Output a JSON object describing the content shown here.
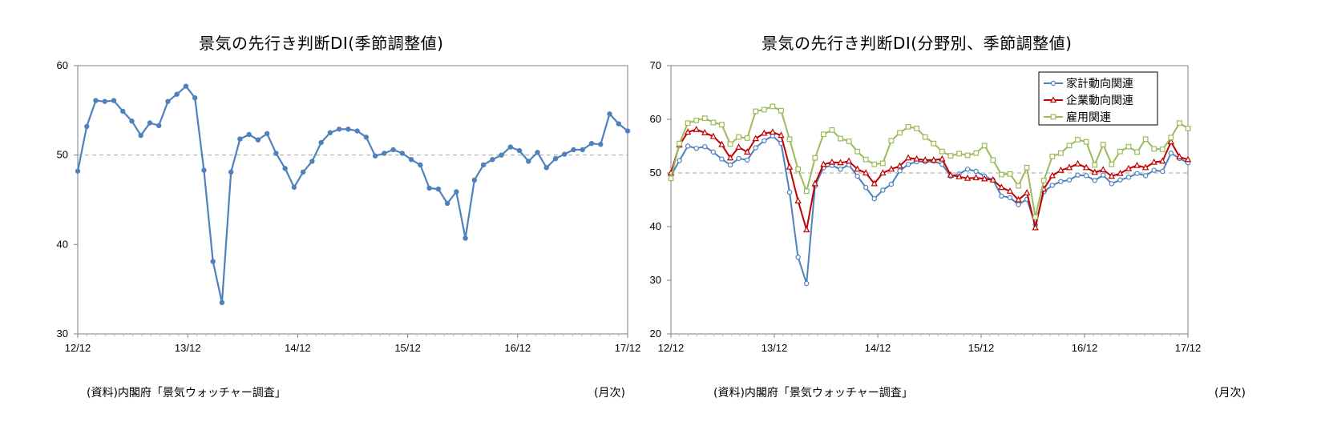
{
  "chart_data": [
    {
      "type": "line",
      "title": "景気の先行き判断DI(季節調整値)",
      "source_note": "(資料)内閣府「景気ウォッチャー調査」",
      "unit_note": "(月次)",
      "xtick_labels": [
        "12/12",
        "13/12",
        "14/12",
        "15/12",
        "16/12",
        "17/12"
      ],
      "xlim": [
        0,
        60
      ],
      "ylim": [
        30,
        60
      ],
      "ytick_labels": [
        "30",
        "40",
        "50",
        "60"
      ],
      "yticks": [
        30,
        40,
        50,
        60
      ],
      "reference_line": 50,
      "grid": false,
      "series": [
        {
          "color": "#4F81BD",
          "values": [
            48.2,
            53.2,
            56.1,
            56.0,
            56.1,
            54.9,
            53.8,
            52.2,
            53.6,
            53.3,
            56.0,
            56.8,
            57.7,
            56.4,
            48.3,
            38.1,
            33.5,
            48.1,
            51.8,
            52.3,
            51.7,
            52.4,
            50.2,
            48.5,
            46.4,
            48.1,
            49.3,
            51.4,
            52.5,
            52.9,
            52.9,
            52.7,
            52.0,
            49.9,
            50.2,
            50.6,
            50.2,
            49.5,
            48.9,
            46.3,
            46.2,
            44.6,
            45.9,
            40.7,
            47.2,
            48.9,
            49.5,
            50.0,
            50.9,
            50.5,
            49.3,
            50.3,
            48.6,
            49.6,
            50.1,
            50.6,
            50.6,
            51.3,
            51.2,
            54.6,
            53.5,
            52.7
          ]
        }
      ]
    },
    {
      "type": "line",
      "title": "景気の先行き判断DI(分野別、季節調整値)",
      "source_note": "(資料)内閣府「景気ウォッチャー調査」",
      "unit_note": "(月次)",
      "xtick_labels": [
        "12/12",
        "13/12",
        "14/12",
        "15/12",
        "16/12",
        "17/12"
      ],
      "xlim": [
        0,
        60
      ],
      "ylim": [
        20,
        70
      ],
      "ytick_labels": [
        "20",
        "30",
        "40",
        "50",
        "60",
        "70"
      ],
      "yticks": [
        20,
        30,
        40,
        50,
        60,
        70
      ],
      "reference_line": 50,
      "grid": false,
      "legend_position": "top-right",
      "series": [
        {
          "name": "家計動向関連",
          "color": "#4F81BD",
          "marker": "circle",
          "values": [
            49.5,
            52.3,
            55.0,
            54.6,
            54.9,
            53.9,
            52.6,
            51.5,
            52.7,
            52.4,
            54.7,
            56.0,
            56.9,
            55.5,
            46.4,
            34.3,
            29.4,
            47.6,
            51.0,
            51.4,
            50.7,
            51.5,
            49.4,
            47.3,
            45.2,
            46.8,
            47.9,
            50.4,
            51.6,
            52.1,
            52.1,
            52.2,
            51.6,
            49.4,
            49.8,
            50.7,
            50.3,
            49.4,
            48.7,
            45.7,
            45.4,
            44.1,
            45.1,
            40.3,
            46.5,
            47.7,
            48.4,
            48.7,
            49.6,
            49.5,
            48.6,
            49.6,
            48.0,
            48.7,
            49.2,
            49.9,
            49.5,
            50.5,
            50.3,
            53.7,
            52.7,
            51.9
          ]
        },
        {
          "name": "企業動向関連",
          "color": "#C00000",
          "marker": "triangle",
          "values": [
            50.0,
            55.2,
            57.6,
            58.1,
            57.5,
            56.8,
            55.3,
            52.8,
            54.8,
            53.9,
            56.4,
            57.4,
            57.6,
            57.0,
            51.1,
            44.8,
            39.4,
            48.0,
            51.6,
            52.0,
            51.9,
            52.2,
            50.7,
            50.0,
            48.0,
            50.0,
            50.7,
            51.3,
            52.8,
            52.6,
            52.4,
            52.4,
            52.6,
            49.6,
            49.3,
            49.0,
            49.1,
            48.9,
            48.7,
            47.3,
            46.6,
            45.0,
            46.3,
            39.8,
            47.0,
            49.5,
            50.5,
            51.0,
            51.7,
            51.0,
            50.1,
            50.6,
            49.4,
            49.9,
            50.8,
            51.4,
            51.0,
            52.0,
            52.2,
            55.8,
            53.0,
            52.5
          ]
        },
        {
          "name": "雇用関連",
          "color": "#9BBB59",
          "marker": "square",
          "values": [
            49.0,
            55.5,
            59.3,
            59.8,
            60.2,
            59.4,
            59.0,
            55.4,
            56.7,
            56.5,
            61.5,
            61.8,
            62.4,
            61.6,
            56.3,
            50.7,
            46.6,
            52.8,
            57.2,
            58.0,
            56.4,
            55.9,
            54.0,
            52.5,
            51.6,
            51.8,
            56.0,
            57.5,
            58.6,
            58.3,
            56.7,
            55.5,
            54.0,
            53.2,
            53.6,
            53.3,
            53.7,
            55.1,
            52.4,
            49.7,
            49.8,
            47.6,
            51.0,
            41.8,
            48.6,
            53.1,
            53.7,
            55.1,
            56.2,
            55.8,
            51.5,
            55.3,
            51.6,
            54.0,
            54.9,
            53.9,
            56.3,
            54.5,
            54.4,
            56.6,
            59.3,
            58.3
          ]
        }
      ]
    }
  ]
}
